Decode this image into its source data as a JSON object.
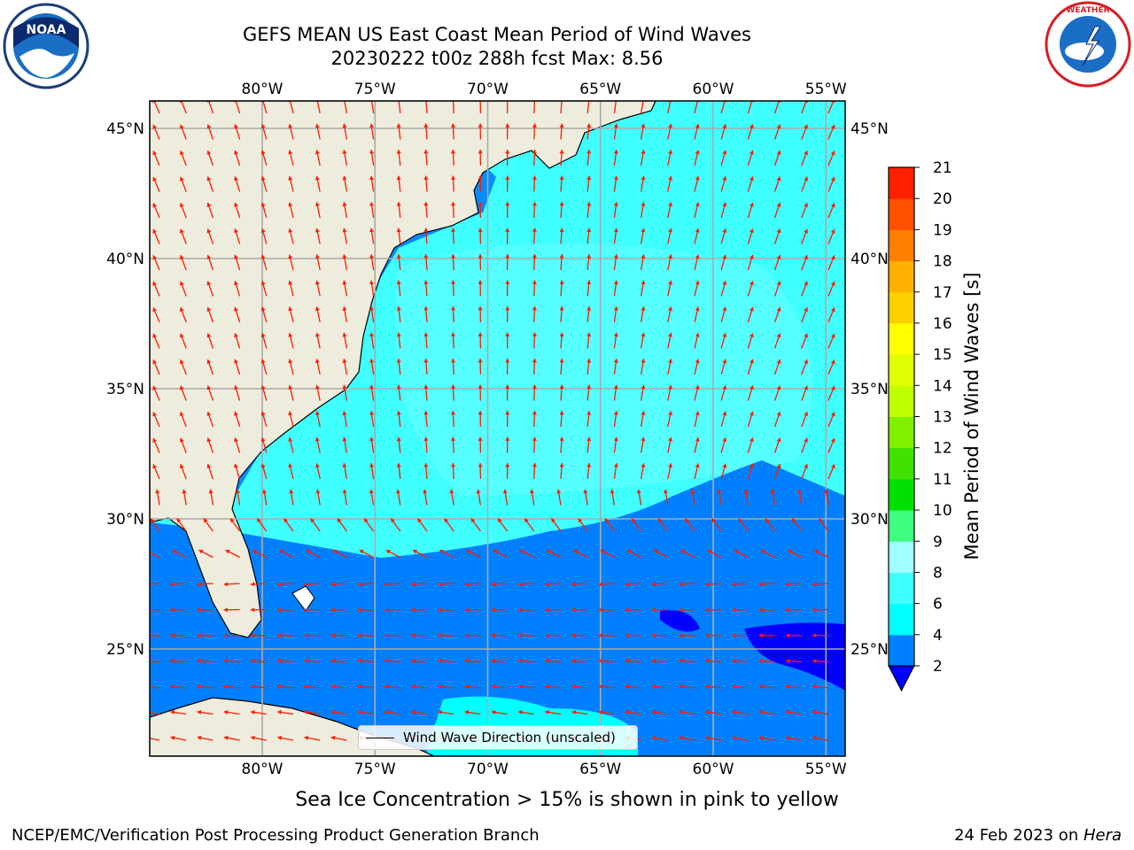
{
  "header": {
    "title_line1": "GEFS MEAN US East Coast Mean Period of Wind Waves",
    "title_line2": "20230222 t00z 288h fcst   Max: 8.56"
  },
  "logos": {
    "left": {
      "name": "noaa-logo",
      "text": "NOAA"
    },
    "right": {
      "name": "nws-logo",
      "text": "NATIONAL WEATHER SERVICE"
    }
  },
  "map": {
    "lon_labels": [
      "80°W",
      "75°W",
      "70°W",
      "65°W",
      "60°W",
      "55°W"
    ],
    "lat_labels": [
      "45°N",
      "40°N",
      "35°N",
      "30°N",
      "25°N"
    ],
    "lon_range": [
      -85,
      -54.3
    ],
    "lat_range": [
      20.5,
      46
    ],
    "land_color": "#eeecdc",
    "legend_text": "Wind Wave Direction (unscaled)"
  },
  "colorbar": {
    "label": "Mean Period of Wind Waves [s]",
    "ticks": [
      "2",
      "4",
      "6",
      "8",
      "9",
      "10",
      "11",
      "12",
      "13",
      "14",
      "15",
      "16",
      "17",
      "18",
      "19",
      "20",
      "21"
    ],
    "colors": [
      "#0080ff",
      "#00ffff",
      "#40ffff",
      "#a0ffff",
      "#40ff80",
      "#00e000",
      "#40e000",
      "#80f000",
      "#c0ff00",
      "#e0ff00",
      "#ffff00",
      "#ffd000",
      "#ffb000",
      "#ff8000",
      "#ff5000",
      "#ff2000"
    ],
    "under_color": "#0000ff"
  },
  "footer": {
    "ice_note": "Sea Ice Concentration > 15% is shown in pink to yellow",
    "left": "NCEP/EMC/Verification Post Processing Product Generation Branch",
    "right_date": "24 Feb 2023 on ",
    "right_machine": "Hera"
  }
}
